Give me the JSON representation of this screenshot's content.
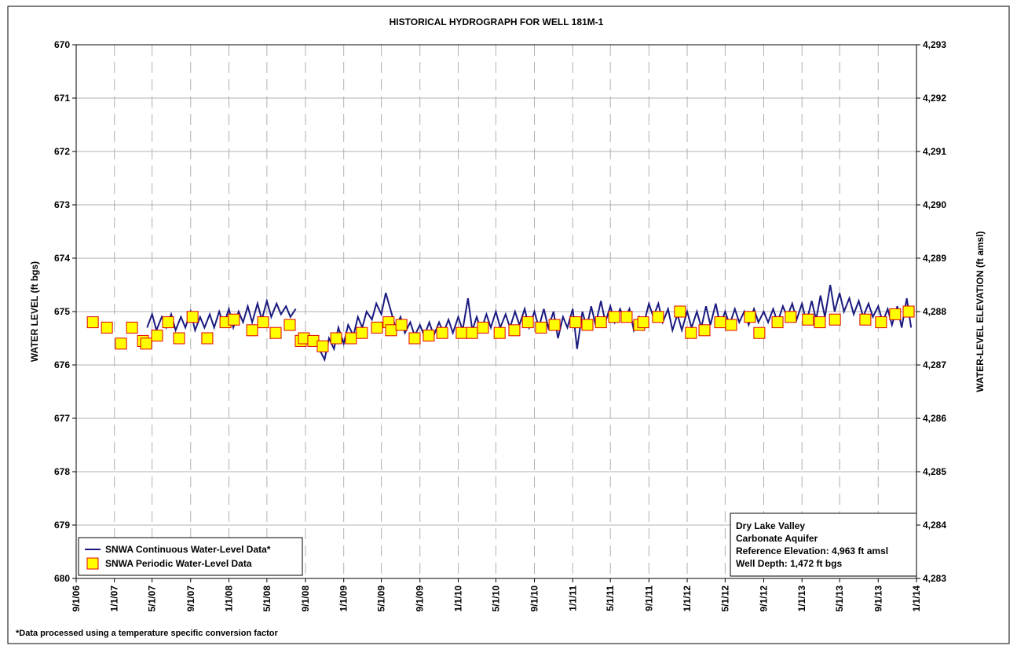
{
  "chart_data": {
    "type": "line",
    "title": "HISTORICAL HYDROGRAPH FOR WELL 181M-1",
    "y_label": "WATER LEVEL (ft bgs)",
    "y2_label": "WATER-LEVEL ELEVATION (ft amsl)",
    "footnote": "*Data processed using a temperature specific conversion factor",
    "annotations": [
      "Dry Lake Valley",
      "Carbonate Aquifer",
      "Reference Elevation: 4,963 ft amsl",
      "Well Depth: 1,472 ft bgs"
    ],
    "ylim": [
      670,
      680
    ],
    "y_inverted": true,
    "yticks": [
      670,
      671,
      672,
      673,
      674,
      675,
      676,
      677,
      678,
      679,
      680
    ],
    "y2lim": [
      4293,
      4283
    ],
    "y2ticks": [
      {
        "value": 4293,
        "label": "4,293"
      },
      {
        "value": 4292,
        "label": "4,292"
      },
      {
        "value": 4291,
        "label": "4,291"
      },
      {
        "value": 4290,
        "label": "4,290"
      },
      {
        "value": 4289,
        "label": "4,289"
      },
      {
        "value": 4288,
        "label": "4,288"
      },
      {
        "value": 4287,
        "label": "4,287"
      },
      {
        "value": 4286,
        "label": "4,286"
      },
      {
        "value": 4285,
        "label": "4,285"
      },
      {
        "value": 4284,
        "label": "4,284"
      },
      {
        "value": 4283,
        "label": "4,283"
      }
    ],
    "xlim": [
      "9/1/06",
      "1/1/14"
    ],
    "xticks": [
      "9/1/06",
      "1/1/07",
      "5/1/07",
      "9/1/07",
      "1/1/08",
      "5/1/08",
      "9/1/08",
      "1/1/09",
      "5/1/09",
      "9/1/09",
      "1/1/10",
      "5/1/10",
      "9/1/10",
      "1/1/11",
      "5/1/11",
      "9/1/11",
      "1/1/12",
      "5/1/12",
      "9/1/12",
      "1/1/13",
      "5/1/13",
      "9/1/13",
      "1/1/14"
    ],
    "grid": true,
    "legend": "lower left",
    "series": [
      {
        "name": "SNWA Continuous Water-Level Data*",
        "color": "#1a1a80",
        "marker": "line",
        "x": [
          "4/15/07",
          "5/1/07",
          "5/15/07",
          "6/1/07",
          "6/15/07",
          "7/1/07",
          "7/15/07",
          "8/1/07",
          "8/15/07",
          "9/1/07",
          "9/15/07",
          "10/1/07",
          "10/15/07",
          "11/1/07",
          "11/15/07",
          "12/1/07",
          "12/15/07",
          "1/1/08",
          "1/15/08",
          "2/1/08",
          "2/15/08",
          "3/1/08",
          "3/15/08",
          "4/1/08",
          "4/15/08",
          "5/1/08",
          "5/15/08",
          "6/1/08",
          "6/15/08",
          "7/1/08",
          "7/15/08",
          "8/1/08",
          "9/1/08",
          "10/15/08",
          "11/1/08",
          "11/15/08",
          "12/1/08",
          "12/15/08",
          "1/1/09",
          "1/15/09",
          "2/1/09",
          "2/15/09",
          "3/1/09",
          "3/15/09",
          "4/1/09",
          "4/15/09",
          "5/1/09",
          "5/15/09",
          "6/1/09",
          "6/15/09",
          "7/1/09",
          "7/15/09",
          "8/1/09",
          "8/15/09",
          "9/1/09",
          "9/15/09",
          "10/1/09",
          "10/15/09",
          "11/1/09",
          "11/15/09",
          "12/1/09",
          "12/15/09",
          "1/1/10",
          "1/15/10",
          "2/1/10",
          "2/15/10",
          "3/1/10",
          "3/15/10",
          "4/1/10",
          "4/15/10",
          "5/1/10",
          "5/15/10",
          "6/1/10",
          "6/15/10",
          "7/1/10",
          "7/15/10",
          "8/1/10",
          "8/15/10",
          "9/1/10",
          "9/15/10",
          "10/1/10",
          "10/15/10",
          "11/1/10",
          "11/15/10",
          "12/1/10",
          "12/15/10",
          "1/1/11",
          "1/15/11",
          "2/1/11",
          "2/15/11",
          "3/1/11",
          "3/15/11",
          "4/1/11",
          "4/15/11",
          "5/1/11",
          "5/15/11",
          "6/1/11",
          "6/15/11",
          "7/1/11",
          "7/15/11",
          "8/1/11",
          "8/15/11",
          "9/1/11",
          "9/15/11",
          "10/1/11",
          "10/15/11",
          "11/1/11",
          "11/15/11",
          "12/1/11",
          "12/15/11",
          "1/1/12",
          "1/15/12",
          "2/1/12",
          "2/15/12",
          "3/1/12",
          "3/15/12",
          "4/1/12",
          "4/15/12",
          "5/1/12",
          "5/15/12",
          "6/1/12",
          "6/15/12",
          "7/1/12",
          "7/15/12",
          "8/1/12",
          "8/15/12",
          "9/1/12",
          "9/15/12",
          "10/1/12",
          "10/15/12",
          "11/1/12",
          "11/15/12",
          "12/1/12",
          "12/15/12",
          "1/1/13",
          "1/15/13",
          "2/1/13",
          "2/15/13",
          "3/1/13",
          "3/15/13",
          "4/1/13",
          "4/15/13",
          "5/1/13",
          "5/15/13",
          "6/1/13",
          "6/15/13",
          "7/1/13",
          "7/15/13",
          "8/1/13",
          "8/15/13",
          "9/1/13",
          "9/15/13",
          "10/1/13",
          "10/15/13",
          "11/1/13",
          "11/15/13",
          "12/1/13",
          "12/15/13"
        ],
        "values": [
          675.3,
          675.05,
          675.35,
          675.1,
          675.3,
          675.05,
          675.35,
          675.1,
          675.3,
          675.0,
          675.35,
          675.1,
          675.3,
          675.05,
          675.3,
          675.0,
          675.25,
          674.95,
          675.3,
          675.0,
          675.2,
          674.9,
          675.2,
          674.85,
          675.15,
          674.8,
          675.1,
          674.85,
          675.05,
          674.9,
          675.1,
          674.95,
          null,
          675.7,
          675.9,
          675.5,
          675.7,
          675.3,
          675.6,
          675.25,
          675.45,
          675.1,
          675.3,
          675.0,
          675.15,
          674.85,
          675.05,
          674.65,
          675.0,
          675.3,
          675.1,
          675.4,
          675.2,
          675.45,
          675.25,
          675.45,
          675.2,
          675.45,
          675.2,
          675.4,
          675.15,
          675.4,
          675.1,
          675.35,
          674.75,
          675.35,
          675.1,
          675.35,
          675.05,
          675.3,
          675.0,
          675.3,
          675.05,
          675.3,
          675.0,
          675.25,
          674.95,
          675.3,
          675.0,
          675.3,
          674.95,
          675.3,
          675.0,
          675.5,
          675.1,
          675.3,
          674.95,
          675.7,
          675.0,
          675.3,
          674.9,
          675.25,
          674.8,
          675.2,
          674.9,
          675.2,
          674.95,
          675.15,
          674.95,
          675.35,
          675.1,
          675.25,
          674.85,
          675.1,
          674.85,
          675.2,
          674.95,
          675.35,
          675.05,
          675.35,
          675.0,
          675.3,
          675.0,
          675.3,
          674.9,
          675.25,
          674.85,
          675.25,
          675.0,
          675.25,
          674.95,
          675.2,
          675.0,
          675.25,
          674.95,
          675.2,
          675.0,
          675.2,
          674.95,
          675.2,
          674.9,
          675.1,
          674.85,
          675.15,
          674.85,
          675.2,
          674.8,
          675.15,
          674.7,
          675.1,
          674.5,
          675.0,
          674.65,
          675.0,
          674.75,
          675.05,
          674.8,
          675.1,
          674.85,
          675.1,
          674.9,
          675.2,
          674.95,
          675.25,
          674.9,
          675.3,
          674.75,
          675.3
        ]
      },
      {
        "name": "SNWA Periodic Water-Level Data",
        "color": "#ffff00",
        "edgecolor": "#e00000",
        "marker": "square",
        "x": [
          "10/24/06",
          "12/8/06",
          "1/22/07",
          "2/26/07",
          "4/2/07",
          "4/12/07",
          "5/17/07",
          "6/21/07",
          "7/26/07",
          "9/7/07",
          "10/24/07",
          "12/21/07",
          "1/17/08",
          "3/15/08",
          "4/19/08",
          "5/29/08",
          "7/13/08",
          "8/17/08",
          "8/27/08",
          "9/26/08",
          "10/26/08",
          "12/8/08",
          "1/24/09",
          "2/28/09",
          "4/17/09",
          "5/24/09",
          "6/1/09",
          "7/4/09",
          "8/15/09",
          "9/29/09",
          "11/11/09",
          "1/12/10",
          "2/14/10",
          "3/21/10",
          "5/13/10",
          "6/29/10",
          "8/11/10",
          "9/22/10",
          "11/4/10",
          "1/10/11",
          "2/17/11",
          "4/1/11",
          "5/13/11",
          "6/22/11",
          "8/1/11",
          "8/14/11",
          "9/30/11",
          "12/9/11",
          "1/13/12",
          "2/25/12",
          "4/15/12",
          "5/20/12",
          "7/19/12",
          "8/18/12",
          "10/15/12",
          "11/26/12",
          "1/20/13",
          "2/27/13",
          "4/16/13",
          "7/22/13",
          "9/10/13",
          "10/25/13",
          "12/7/13"
        ],
        "values": [
          675.2,
          675.3,
          675.6,
          675.3,
          675.55,
          675.6,
          675.45,
          675.2,
          675.5,
          675.1,
          675.5,
          675.2,
          675.15,
          675.35,
          675.2,
          675.4,
          675.25,
          675.55,
          675.5,
          675.55,
          675.65,
          675.5,
          675.5,
          675.4,
          675.3,
          675.2,
          675.35,
          675.25,
          675.5,
          675.45,
          675.4,
          675.4,
          675.4,
          675.3,
          675.4,
          675.35,
          675.2,
          675.3,
          675.25,
          675.2,
          675.25,
          675.2,
          675.1,
          675.1,
          675.25,
          675.2,
          675.1,
          675.0,
          675.4,
          675.35,
          675.2,
          675.25,
          675.1,
          675.4,
          675.2,
          675.1,
          675.15,
          675.2,
          675.15,
          675.15,
          675.2,
          675.05,
          675.0
        ]
      }
    ]
  }
}
